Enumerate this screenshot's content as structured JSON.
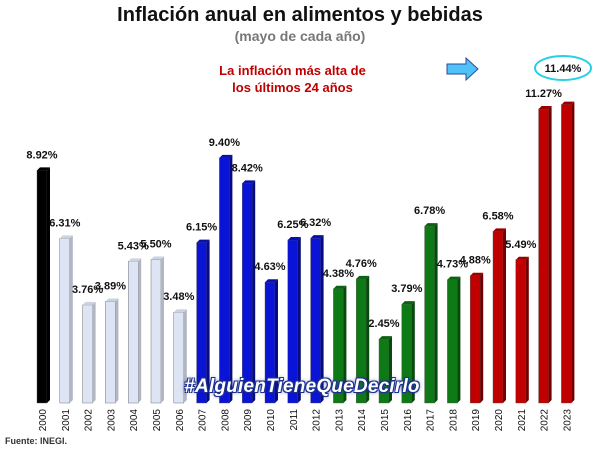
{
  "chart_data": {
    "type": "bar",
    "title": "Inflación anual en alimentos y bebidas",
    "subtitle": "(mayo de cada año)",
    "annotation": [
      "La inflación más alta de",
      "los últimos 24 años"
    ],
    "source": "Fuente: INEGI.",
    "watermark": "#AlguienTieneQueDecirlo",
    "highlight_label": "11.44%",
    "categories": [
      "2000",
      "2001",
      "2002",
      "2003",
      "2004",
      "2005",
      "2006",
      "2007",
      "2008",
      "2009",
      "2010",
      "2011",
      "2012",
      "2013",
      "2014",
      "2015",
      "2016",
      "2017",
      "2018",
      "2019",
      "2020",
      "2021",
      "2022",
      "2023"
    ],
    "values": [
      8.92,
      6.31,
      3.76,
      3.89,
      5.43,
      5.5,
      3.48,
      6.15,
      9.4,
      8.42,
      4.63,
      6.25,
      6.32,
      4.38,
      4.76,
      2.45,
      3.79,
      6.78,
      4.73,
      4.88,
      6.58,
      5.49,
      11.27,
      11.44
    ],
    "value_labels": [
      "8.92%",
      "6.31%",
      "3.76%",
      "3.89%",
      "5.43%",
      "5.50%",
      "3.48%",
      "6.15%",
      "9.40%",
      "8.42%",
      "4.63%",
      "6.25%",
      "6.32%",
      "4.38%",
      "4.76%",
      "2.45%",
      "3.79%",
      "6.78%",
      "4.73%",
      "4.88%",
      "6.58%",
      "5.49%",
      "11.27%",
      ""
    ],
    "bar_colors": [
      "#000000",
      "#dde4f3",
      "#dde4f3",
      "#dde4f3",
      "#dde4f3",
      "#dde4f3",
      "#dde4f3",
      "#0a14d6",
      "#0a14d6",
      "#0a14d6",
      "#0a14d6",
      "#0a14d6",
      "#0a14d6",
      "#0e7a16",
      "#0e7a16",
      "#0e7a16",
      "#0e7a16",
      "#0e7a16",
      "#0e7a16",
      "#c00000",
      "#c00000",
      "#c00000",
      "#c00000",
      "#c00000"
    ],
    "ylim": [
      0,
      12
    ],
    "grid": false,
    "legend": "none",
    "colors": {
      "annotation": "#c00000",
      "arrow": "#4fc3f7",
      "highlight_ellipse": "#26d0e6",
      "watermark_outline": "#1c2f8f"
    }
  }
}
